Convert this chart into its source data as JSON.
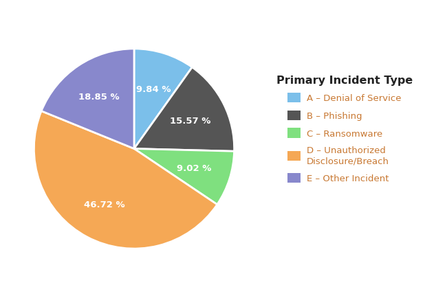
{
  "title": "Primary Incident Type",
  "legend_labels": [
    "A – Denial of Service",
    "B – Phishing",
    "C – Ransomware",
    "D – Unauthorized\nDisclosure/Breach",
    "E – Other Incident"
  ],
  "values": [
    9.84,
    15.57,
    9.02,
    46.72,
    18.85
  ],
  "colors": [
    "#7BBFEA",
    "#555555",
    "#7FE07F",
    "#F5A855",
    "#8888CC"
  ],
  "pct_labels": [
    "9.84 %",
    "15.57 %",
    "9.02 %",
    "46.72 %",
    "18.85 %"
  ],
  "legend_text_color": "#C87832",
  "title_color": "#222222",
  "background_color": "#ffffff",
  "label_color": "#ffffff",
  "startangle": 90
}
